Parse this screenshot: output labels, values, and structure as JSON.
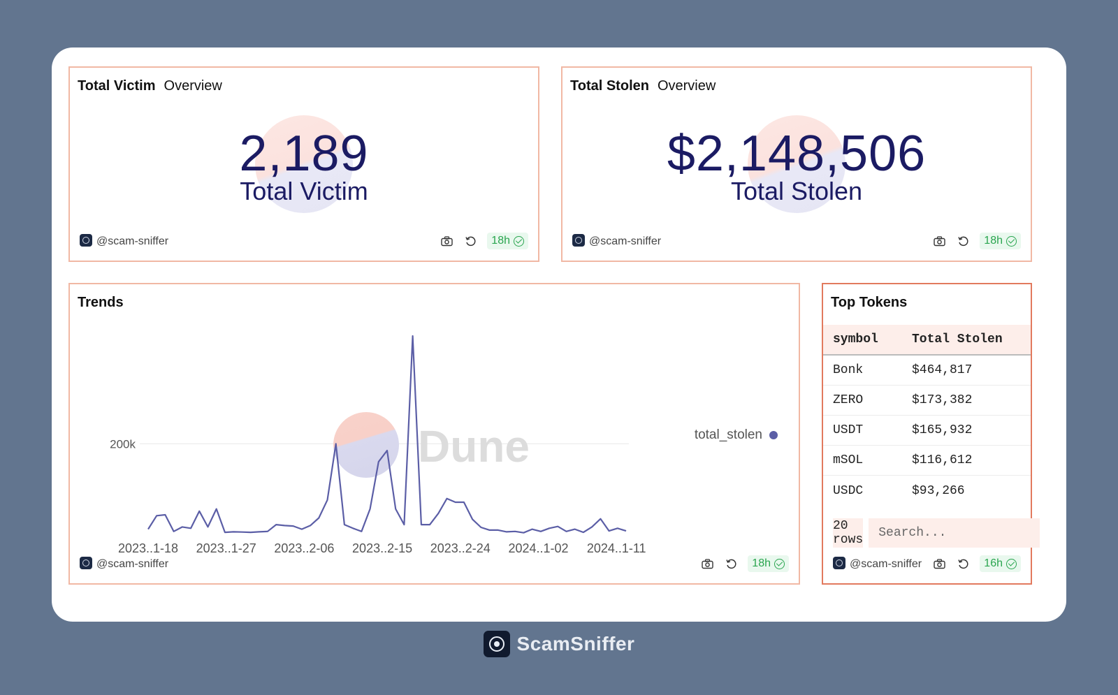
{
  "victim_panel": {
    "title": "Total Victim",
    "subtitle": "Overview",
    "value": "2,189",
    "caption": "Total Victim",
    "author": "@scam-sniffer",
    "freshness": "18h"
  },
  "stolen_panel": {
    "title": "Total Stolen",
    "subtitle": "Overview",
    "value": "$2,148,506",
    "caption": "Total Stolen",
    "author": "@scam-sniffer",
    "freshness": "18h"
  },
  "trends_panel": {
    "title": "Trends",
    "watermark": "Dune",
    "author": "@scam-sniffer",
    "freshness": "18h"
  },
  "chart_data": {
    "type": "line",
    "title": "Trends",
    "x_tick_labels": [
      "2023..1-18",
      "2023..1-27",
      "2023..2-06",
      "2023..2-15",
      "2023..2-24",
      "2024..1-02",
      "2024..1-11"
    ],
    "y_tick_labels": [
      "200k"
    ],
    "ylim": [
      0,
      440000
    ],
    "grid": "horizontal",
    "legend_position": "right",
    "series": [
      {
        "name": "total_stolen",
        "color": "#5b5ea6",
        "values": [
          10000,
          40000,
          42000,
          5000,
          15000,
          12000,
          50000,
          15000,
          55000,
          3000,
          4000,
          3500,
          3000,
          4000,
          5000,
          20000,
          18000,
          17000,
          10000,
          18000,
          35000,
          75000,
          200000,
          20000,
          12000,
          5000,
          55000,
          160000,
          185000,
          55000,
          20000,
          440000,
          20000,
          20000,
          45000,
          78000,
          70000,
          70000,
          32000,
          14000,
          8000,
          8000,
          4000,
          5000,
          2000,
          10000,
          5000,
          12000,
          16000,
          5000,
          10000,
          3000,
          15000,
          33000,
          6000,
          12000,
          6000
        ]
      }
    ]
  },
  "tokens_panel": {
    "title": "Top Tokens",
    "columns": [
      "symbol",
      "Total Stolen"
    ],
    "rows": [
      [
        "Bonk",
        "$464,817"
      ],
      [
        "ZERO",
        "$173,382"
      ],
      [
        "USDT",
        "$165,932"
      ],
      [
        "mSOL",
        "$116,612"
      ],
      [
        "USDC",
        "$93,266"
      ]
    ],
    "row_count": "20 rows",
    "search_placeholder": "Search...",
    "author": "@scam-sniffer",
    "freshness": "16h"
  },
  "brand": {
    "name": "ScamSniffer"
  }
}
